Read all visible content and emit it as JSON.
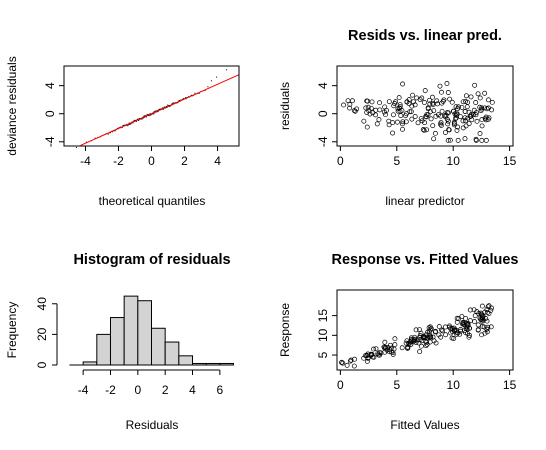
{
  "chart_data": [
    {
      "type": "scatter",
      "title": "",
      "xlabel": "theoretical quantiles",
      "ylabel": "deviance residuals",
      "xlim": [
        -5.3,
        5.3
      ],
      "ylim": [
        -4.6,
        6.8
      ],
      "xticks": [
        -4,
        -2,
        0,
        2,
        4
      ],
      "yticks": [
        -4,
        0,
        4
      ],
      "points_style": "tiny black dots",
      "reference_line": {
        "color": "#ff0000",
        "intercept": 0,
        "slope": 1.05
      },
      "grid": false
    },
    {
      "type": "scatter",
      "title": "Resids vs. linear pred.",
      "xlabel": "linear predictor",
      "ylabel": "residuals",
      "xlim": [
        -0.3,
        15.3
      ],
      "ylim": [
        -4.6,
        6.8
      ],
      "xticks": [
        0,
        5,
        10,
        15
      ],
      "yticks": [
        -4,
        0,
        4
      ],
      "points_style": "open circles",
      "grid": false
    },
    {
      "type": "bar",
      "title": "Histogram of residuals",
      "xlabel": "Residuals",
      "ylabel": "Frequency",
      "bins": [
        {
          "from": -4,
          "to": -3,
          "count": 2
        },
        {
          "from": -3,
          "to": -2,
          "count": 20
        },
        {
          "from": -2,
          "to": -1,
          "count": 31
        },
        {
          "from": -1,
          "to": 0,
          "count": 45
        },
        {
          "from": 0,
          "to": 1,
          "count": 42
        },
        {
          "from": 1,
          "to": 2,
          "count": 24
        },
        {
          "from": 2,
          "to": 3,
          "count": 15
        },
        {
          "from": 3,
          "to": 4,
          "count": 6
        },
        {
          "from": 4,
          "to": 5,
          "count": 1
        },
        {
          "from": 5,
          "to": 6,
          "count": 1
        },
        {
          "from": 6,
          "to": 7,
          "count": 1
        }
      ],
      "xlim": [
        -5.4,
        7.4
      ],
      "ylim": [
        0,
        49
      ],
      "xticks": [
        -4,
        -2,
        0,
        2,
        4,
        6
      ],
      "yticks": [
        0,
        20,
        40
      ],
      "bar_color": "#d3d3d3",
      "grid": false
    },
    {
      "type": "scatter",
      "title": "Response vs. Fitted Values",
      "xlabel": "Fitted Values",
      "ylabel": "Response",
      "xlim": [
        -0.3,
        15.3
      ],
      "ylim": [
        1.2,
        21.5
      ],
      "xticks": [
        0,
        5,
        10,
        15
      ],
      "yticks": [
        5,
        10,
        15
      ],
      "points_style": "open circles",
      "grid": false
    }
  ]
}
